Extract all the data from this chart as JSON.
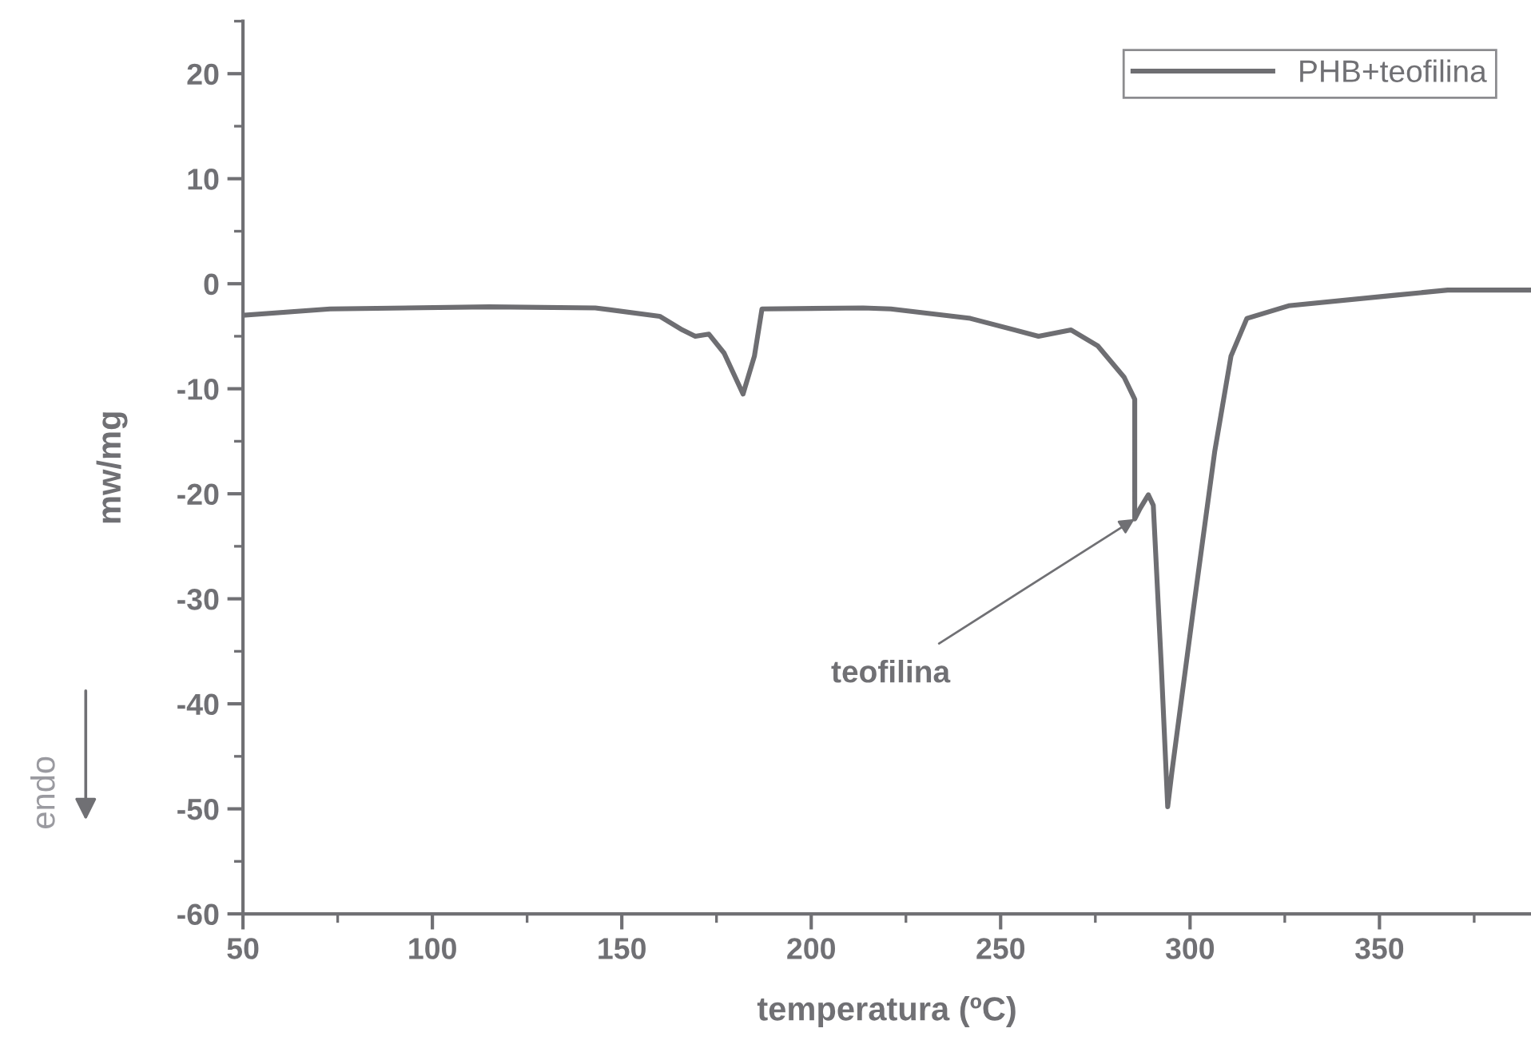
{
  "chart_data": {
    "type": "line",
    "xlabel": "temperatura (ºC)",
    "ylabel": "mw/mg",
    "legend": "top right",
    "grid": false,
    "marker": "none",
    "line_style": "solid",
    "xlim": [
      50,
      390
    ],
    "ylim": [
      -60,
      25
    ],
    "xticks": [
      50,
      {
        "value": 75,
        "label": null
      },
      100,
      {
        "value": 125,
        "label": null
      },
      150,
      {
        "value": 175,
        "label": null
      },
      200,
      {
        "value": 225,
        "label": null
      },
      250,
      {
        "value": 275,
        "label": null
      },
      300,
      {
        "value": 325,
        "label": null
      },
      350,
      {
        "value": 375,
        "label": null
      }
    ],
    "yticks": [
      -60,
      {
        "value": -55,
        "label": null
      },
      -50,
      {
        "value": -45,
        "label": null
      },
      -40,
      {
        "value": -35,
        "label": null
      },
      -30,
      {
        "value": -25,
        "label": null
      },
      -20,
      {
        "value": -15,
        "label": null
      },
      -10,
      {
        "value": -5,
        "label": null
      },
      0,
      {
        "value": 5,
        "label": null
      },
      10,
      {
        "value": 15,
        "label": null
      },
      20,
      {
        "value": 25,
        "label": null
      }
    ],
    "annotations": [
      {
        "text": "teofilina",
        "x": 285.4,
        "y": -22.4
      },
      "endo"
    ],
    "series": [
      {
        "name": "PHB+teofilina",
        "color": "#6e6e72",
        "x": [
          50.4,
          73,
          115,
          143,
          160,
          166,
          169.4,
          173,
          177,
          182,
          185,
          187,
          213.7,
          221,
          242,
          260,
          268.6,
          275.6,
          282.6,
          285.4,
          285.4,
          286.8,
          289,
          290.3,
          292.4,
          294.1,
          295.2,
          300.8,
          306.5,
          310.8,
          315,
          326,
          354,
          368,
          389.5
        ],
        "values": [
          -3.0,
          -2.4,
          -2.2,
          -2.3,
          -3.1,
          -4.4,
          -5.0,
          -4.8,
          -6.6,
          -10.5,
          -6.9,
          -2.4,
          -2.3,
          -2.4,
          -3.3,
          -5.0,
          -4.4,
          -5.9,
          -8.9,
          -11.0,
          -22.4,
          -21.4,
          -20.1,
          -21.1,
          -36.3,
          -49.8,
          -46.5,
          -31.2,
          -16.0,
          -6.9,
          -3.3,
          -2.1,
          -1.1,
          -0.6,
          -0.6
        ]
      }
    ]
  }
}
